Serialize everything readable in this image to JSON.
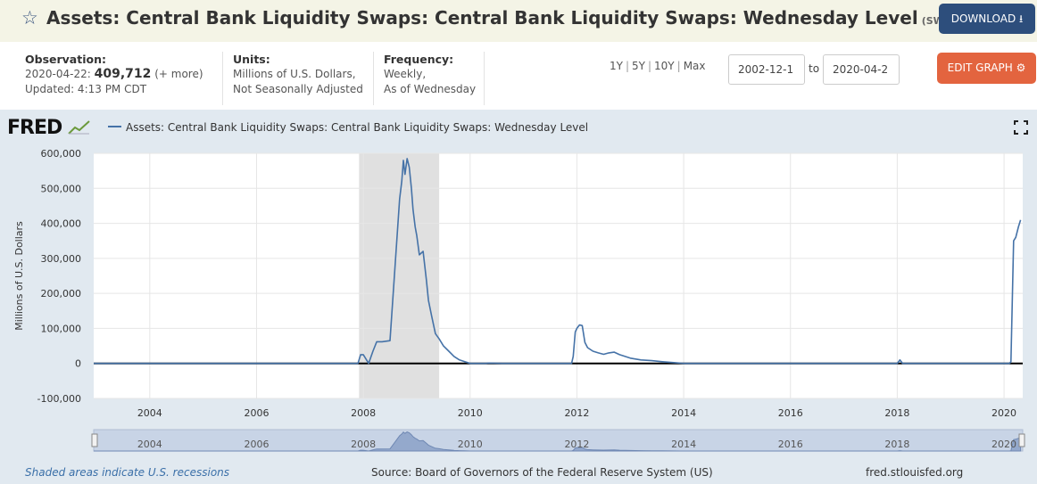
{
  "header": {
    "star_icon": "star-outline-icon",
    "title": "Assets: Central Bank Liquidity Swaps: Central Bank Liquidity Swaps: Wednesday Level",
    "series_id": "(SWPT)",
    "download_label": "DOWNLOAD",
    "download_icon": "download-icon"
  },
  "meta": {
    "observation_label": "Observation:",
    "observation_date": "2020-04-22:",
    "observation_value": "409,712",
    "observation_more": "(+ more)",
    "updated": "Updated: 4:13 PM CDT",
    "units_label": "Units:",
    "units_line1": "Millions of U.S. Dollars,",
    "units_line2": "Not Seasonally Adjusted",
    "frequency_label": "Frequency:",
    "frequency_line1": "Weekly,",
    "frequency_line2": "As of Wednesday"
  },
  "controls": {
    "range_1y": "1Y",
    "range_5y": "5Y",
    "range_10y": "10Y",
    "range_max": "Max",
    "start_date": "2002-12-1",
    "to_label": "to",
    "end_date": "2020-04-2",
    "edit_label": "EDIT GRAPH",
    "edit_icon": "gear-icon"
  },
  "chart_data": {
    "type": "line",
    "logo": "FRED",
    "legend": "Assets: Central Bank Liquidity Swaps: Central Bank Liquidity Swaps: Wednesday Level",
    "ylabel": "Millions of U.S. Dollars",
    "ylim": [
      -100000,
      600000
    ],
    "yticks": [
      -100000,
      0,
      100000,
      200000,
      300000,
      400000,
      500000,
      600000
    ],
    "ytick_labels": [
      "-100,000",
      "0",
      "100,000",
      "200,000",
      "300,000",
      "400,000",
      "500,000",
      "600,000"
    ],
    "xlim": [
      2002.95,
      2020.35
    ],
    "xticks": [
      2004,
      2006,
      2008,
      2010,
      2012,
      2014,
      2016,
      2018,
      2020
    ],
    "xtick_labels": [
      "2004",
      "2006",
      "2008",
      "2010",
      "2012",
      "2014",
      "2016",
      "2018",
      "2020"
    ],
    "recessions": [
      [
        2007.92,
        2009.42
      ]
    ],
    "line_color": "#4572a7",
    "grid": true,
    "series": [
      {
        "name": "Assets: Central Bank Liquidity Swaps: Central Bank Liquidity Swaps: Wednesday Level",
        "x": [
          2002.95,
          2007.9,
          2007.95,
          2008.0,
          2008.1,
          2008.18,
          2008.25,
          2008.35,
          2008.5,
          2008.6,
          2008.68,
          2008.72,
          2008.75,
          2008.78,
          2008.82,
          2008.86,
          2008.9,
          2008.93,
          2008.97,
          2009.0,
          2009.05,
          2009.12,
          2009.18,
          2009.22,
          2009.28,
          2009.35,
          2009.42,
          2009.5,
          2009.6,
          2009.7,
          2009.8,
          2009.9,
          2010.0,
          2010.05,
          2010.3,
          2010.35,
          2010.6,
          2011.9,
          2011.93,
          2011.97,
          2012.0,
          2012.05,
          2012.1,
          2012.15,
          2012.2,
          2012.3,
          2012.4,
          2012.5,
          2012.6,
          2012.7,
          2012.8,
          2013.0,
          2013.2,
          2013.4,
          2013.6,
          2014.0,
          2015.0,
          2016.0,
          2017.0,
          2017.5,
          2018.0,
          2018.05,
          2018.1,
          2019.0,
          2020.0,
          2020.1,
          2020.13,
          2020.18,
          2020.22,
          2020.27,
          2020.31
        ],
        "values": [
          0,
          0,
          25000,
          25000,
          0,
          35000,
          62000,
          62000,
          65000,
          290000,
          470000,
          520000,
          580000,
          540000,
          585000,
          560000,
          500000,
          440000,
          390000,
          365000,
          310000,
          320000,
          240000,
          180000,
          135000,
          85000,
          70000,
          50000,
          35000,
          20000,
          10000,
          5000,
          0,
          0,
          0,
          1000,
          0,
          0,
          20000,
          90000,
          100000,
          110000,
          108000,
          60000,
          45000,
          35000,
          30000,
          26000,
          30000,
          32000,
          25000,
          15000,
          10000,
          8000,
          5000,
          0,
          0,
          0,
          0,
          0,
          0,
          10000,
          0,
          0,
          0,
          0,
          5000,
          350000,
          360000,
          390000,
          409712
        ]
      }
    ],
    "navigator_ticks": [
      "2004",
      "2006",
      "2008",
      "2010",
      "2012",
      "2014",
      "2016",
      "2018",
      "2020"
    ],
    "fullscreen_icon": "fullscreen-icon"
  },
  "footer": {
    "recession_note": "Shaded areas indicate U.S. recessions",
    "source": "Source: Board of Governors of the Federal Reserve System (US)",
    "site": "fred.stlouisfed.org"
  }
}
